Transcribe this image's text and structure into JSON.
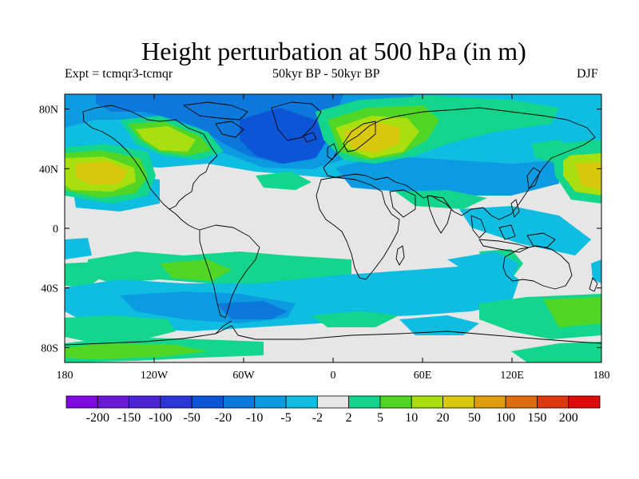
{
  "title": "Height perturbation at 500 hPa (in m)",
  "experiment": "Expt = tcmqr3-tcmqr",
  "period": "50kyr BP - 50kyr BP",
  "season": "DJF",
  "axes": {
    "lat_ticks": [
      "80N",
      "40N",
      "0",
      "40S",
      "80S"
    ],
    "lon_ticks": [
      "180",
      "120W",
      "60W",
      "0",
      "60E",
      "120E",
      "180"
    ]
  },
  "colorbar": {
    "colors": [
      "#7d0be0",
      "#6a17d6",
      "#4d24d4",
      "#2c35d6",
      "#0b55d6",
      "#0c78dc",
      "#0c9be0",
      "#0fbde0",
      "#e6e6e6",
      "#14d58c",
      "#52d626",
      "#a9df0f",
      "#d8c80e",
      "#dd9d0e",
      "#de6d0f",
      "#dc3a0e",
      "#de0b0b"
    ],
    "labels": [
      "-200",
      "-150",
      "-100",
      "-50",
      "-20",
      "-10",
      "-5",
      "-2",
      "2",
      "5",
      "10",
      "20",
      "50",
      "100",
      "150",
      "200"
    ]
  },
  "chart_data": {
    "type": "heatmap",
    "projection": "cylindrical-equidistant",
    "variable": "Height perturbation at 500 hPa",
    "units": "m",
    "lon_range": [
      -180,
      180
    ],
    "lat_range": [
      -90,
      90
    ],
    "contour_levels": [
      -200,
      -150,
      -100,
      -50,
      -20,
      -10,
      -5,
      -2,
      2,
      5,
      10,
      20,
      50,
      100,
      150,
      200
    ],
    "regions": [
      {
        "level_bin": "-20 to -10",
        "lon": [
          -100,
          10
        ],
        "lat": [
          45,
          75
        ]
      },
      {
        "level_bin": "-10 to -5",
        "lon": [
          -170,
          -20
        ],
        "lat": [
          40,
          90
        ]
      },
      {
        "level_bin": "-5 to -2",
        "lon": [
          -100,
          140
        ],
        "lat": [
          35,
          50
        ]
      },
      {
        "level_bin": "20 to 50",
        "lon": [
          10,
          50
        ],
        "lat": [
          50,
          65
        ]
      },
      {
        "level_bin": "10 to 20",
        "lon": [
          -180,
          -140
        ],
        "lat": [
          25,
          45
        ]
      },
      {
        "level_bin": "10 to 20",
        "lon": [
          160,
          180
        ],
        "lat": [
          25,
          45
        ]
      },
      {
        "level_bin": "10 to 20",
        "lon": [
          -115,
          -85
        ],
        "lat": [
          45,
          65
        ]
      },
      {
        "level_bin": "-5 to -2",
        "lon": [
          -110,
          20
        ],
        "lat": [
          -70,
          -50
        ]
      },
      {
        "level_bin": "2 to 5",
        "lon": [
          -150,
          10
        ],
        "lat": [
          -45,
          -30
        ]
      },
      {
        "level_bin": "2 to 5",
        "lon": [
          100,
          180
        ],
        "lat": [
          -70,
          -55
        ]
      },
      {
        "level_bin": "2 to 5",
        "lon": [
          -180,
          -90
        ],
        "lat": [
          -90,
          -80
        ]
      }
    ]
  }
}
